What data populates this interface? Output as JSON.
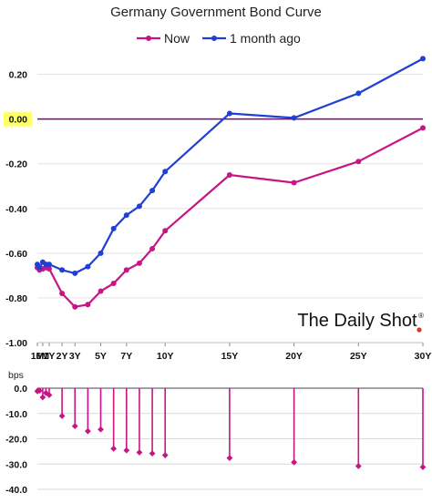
{
  "chart_data": [
    {
      "type": "line",
      "title": "Germany Government Bond Curve",
      "legend_position": "top-center",
      "x": [
        "1M",
        "3M",
        "6M",
        "9M",
        "1Y",
        "2Y",
        "3Y",
        "4Y",
        "5Y",
        "6Y",
        "7Y",
        "8Y",
        "9Y",
        "10Y",
        "15Y",
        "20Y",
        "25Y",
        "30Y"
      ],
      "x_years": [
        0.083,
        0.25,
        0.5,
        0.75,
        1,
        2,
        3,
        4,
        5,
        6,
        7,
        8,
        9,
        10,
        15,
        20,
        25,
        30
      ],
      "tick_labels": [
        "1M",
        "6M",
        "1Y",
        "2Y",
        "3Y",
        "5Y",
        "7Y",
        "10Y",
        "15Y",
        "20Y",
        "25Y",
        "30Y"
      ],
      "tick_years": [
        0.083,
        0.5,
        1,
        2,
        3,
        5,
        7,
        10,
        15,
        20,
        25,
        30
      ],
      "ylim": [
        -1.0,
        0.3
      ],
      "y_ticks": [
        -1.0,
        -0.8,
        -0.6,
        -0.4,
        -0.2,
        0.0,
        0.2
      ],
      "y_tick_labels": [
        "-1.00",
        "-0.80",
        "-0.60",
        "-0.40",
        "-0.20",
        "0.00",
        "0.20"
      ],
      "zero_line_color": "#5b1a5e",
      "highlight_zero_label_color": "#ffff66",
      "series": [
        {
          "name": "Now",
          "color": "#c71585",
          "values": [
            -0.665,
            -0.675,
            -0.67,
            -0.665,
            -0.67,
            -0.78,
            -0.84,
            -0.83,
            -0.77,
            -0.735,
            -0.675,
            -0.645,
            -0.58,
            -0.5,
            -0.25,
            -0.285,
            -0.19,
            -0.04
          ]
        },
        {
          "name": "1 month ago",
          "color": "#1f3fd6",
          "values": [
            -0.65,
            -0.665,
            -0.64,
            -0.65,
            -0.65,
            -0.675,
            -0.69,
            -0.66,
            -0.6,
            -0.49,
            -0.43,
            -0.39,
            -0.32,
            -0.235,
            0.025,
            0.005,
            0.115,
            0.27
          ]
        }
      ],
      "watermark": "The Daily Shot",
      "watermark_mark": "®",
      "watermark_dot_color": "#d9342b"
    },
    {
      "type": "bar",
      "subtype": "lollipop",
      "ylabel": "bps",
      "ylim": [
        -40.0,
        0.0
      ],
      "y_ticks": [
        0.0,
        -10.0,
        -20.0,
        -30.0,
        -40.0
      ],
      "y_tick_labels": [
        "0.0",
        "-10.0",
        "-20.0",
        "-30.0",
        "-40.0"
      ],
      "color": "#c71585",
      "x_years": [
        0.083,
        0.25,
        0.5,
        0.75,
        1,
        2,
        3,
        4,
        5,
        6,
        7,
        8,
        9,
        10,
        15,
        20,
        25,
        30
      ],
      "values": [
        -1.2,
        -1.0,
        -3.6,
        -1.9,
        -2.7,
        -11.0,
        -15.0,
        -17.0,
        -16.3,
        -23.9,
        -24.6,
        -25.4,
        -25.8,
        -26.5,
        -27.6,
        -29.3,
        -30.8,
        -31.2
      ]
    }
  ]
}
